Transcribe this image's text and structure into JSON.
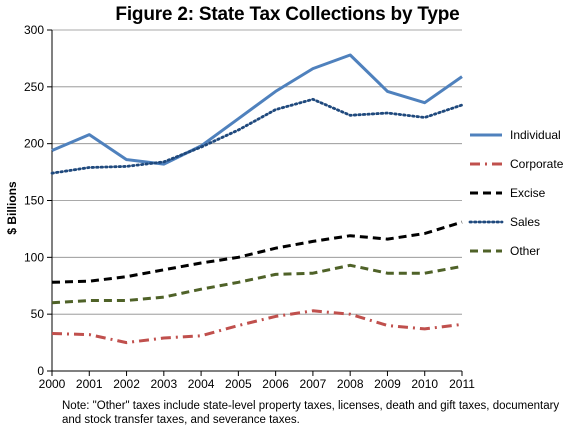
{
  "chart_data": {
    "type": "line",
    "title": "Figure 2: State Tax Collections by Type",
    "xlabel": "",
    "ylabel": "$ Billions",
    "x": [
      "2000",
      "2001",
      "2002",
      "2003",
      "2004",
      "2005",
      "2006",
      "2007",
      "2008",
      "2009",
      "2010",
      "2011"
    ],
    "ylim": [
      0,
      300
    ],
    "yticks": [
      "0",
      "50",
      "100",
      "150",
      "200",
      "250",
      "300"
    ],
    "grid": true,
    "legend_position": "right",
    "series": [
      {
        "name": "Individual",
        "color": "#4F81BD",
        "style": "solid",
        "values": [
          194,
          208,
          186,
          182,
          198,
          222,
          246,
          266,
          278,
          246,
          236,
          259
        ]
      },
      {
        "name": "Corporate",
        "color": "#C0504D",
        "style": "dash-dot",
        "values": [
          33,
          32,
          25,
          29,
          31,
          40,
          48,
          53,
          50,
          40,
          37,
          41
        ]
      },
      {
        "name": "Excise",
        "color": "#000000",
        "style": "dash",
        "values": [
          78,
          79,
          83,
          89,
          95,
          100,
          108,
          114,
          119,
          116,
          121,
          131
        ]
      },
      {
        "name": "Sales",
        "color": "#1F497D",
        "style": "dot",
        "values": [
          174,
          179,
          180,
          184,
          197,
          212,
          230,
          239,
          225,
          227,
          223,
          234
        ]
      },
      {
        "name": "Other",
        "color": "#4F6228",
        "style": "dash",
        "values": [
          60,
          62,
          62,
          65,
          72,
          78,
          85,
          86,
          93,
          86,
          86,
          92
        ]
      }
    ]
  },
  "note": "Note: \"Other\" taxes include state-level property taxes, licenses, death and gift taxes, documentary and stock transfer taxes, and severance taxes."
}
